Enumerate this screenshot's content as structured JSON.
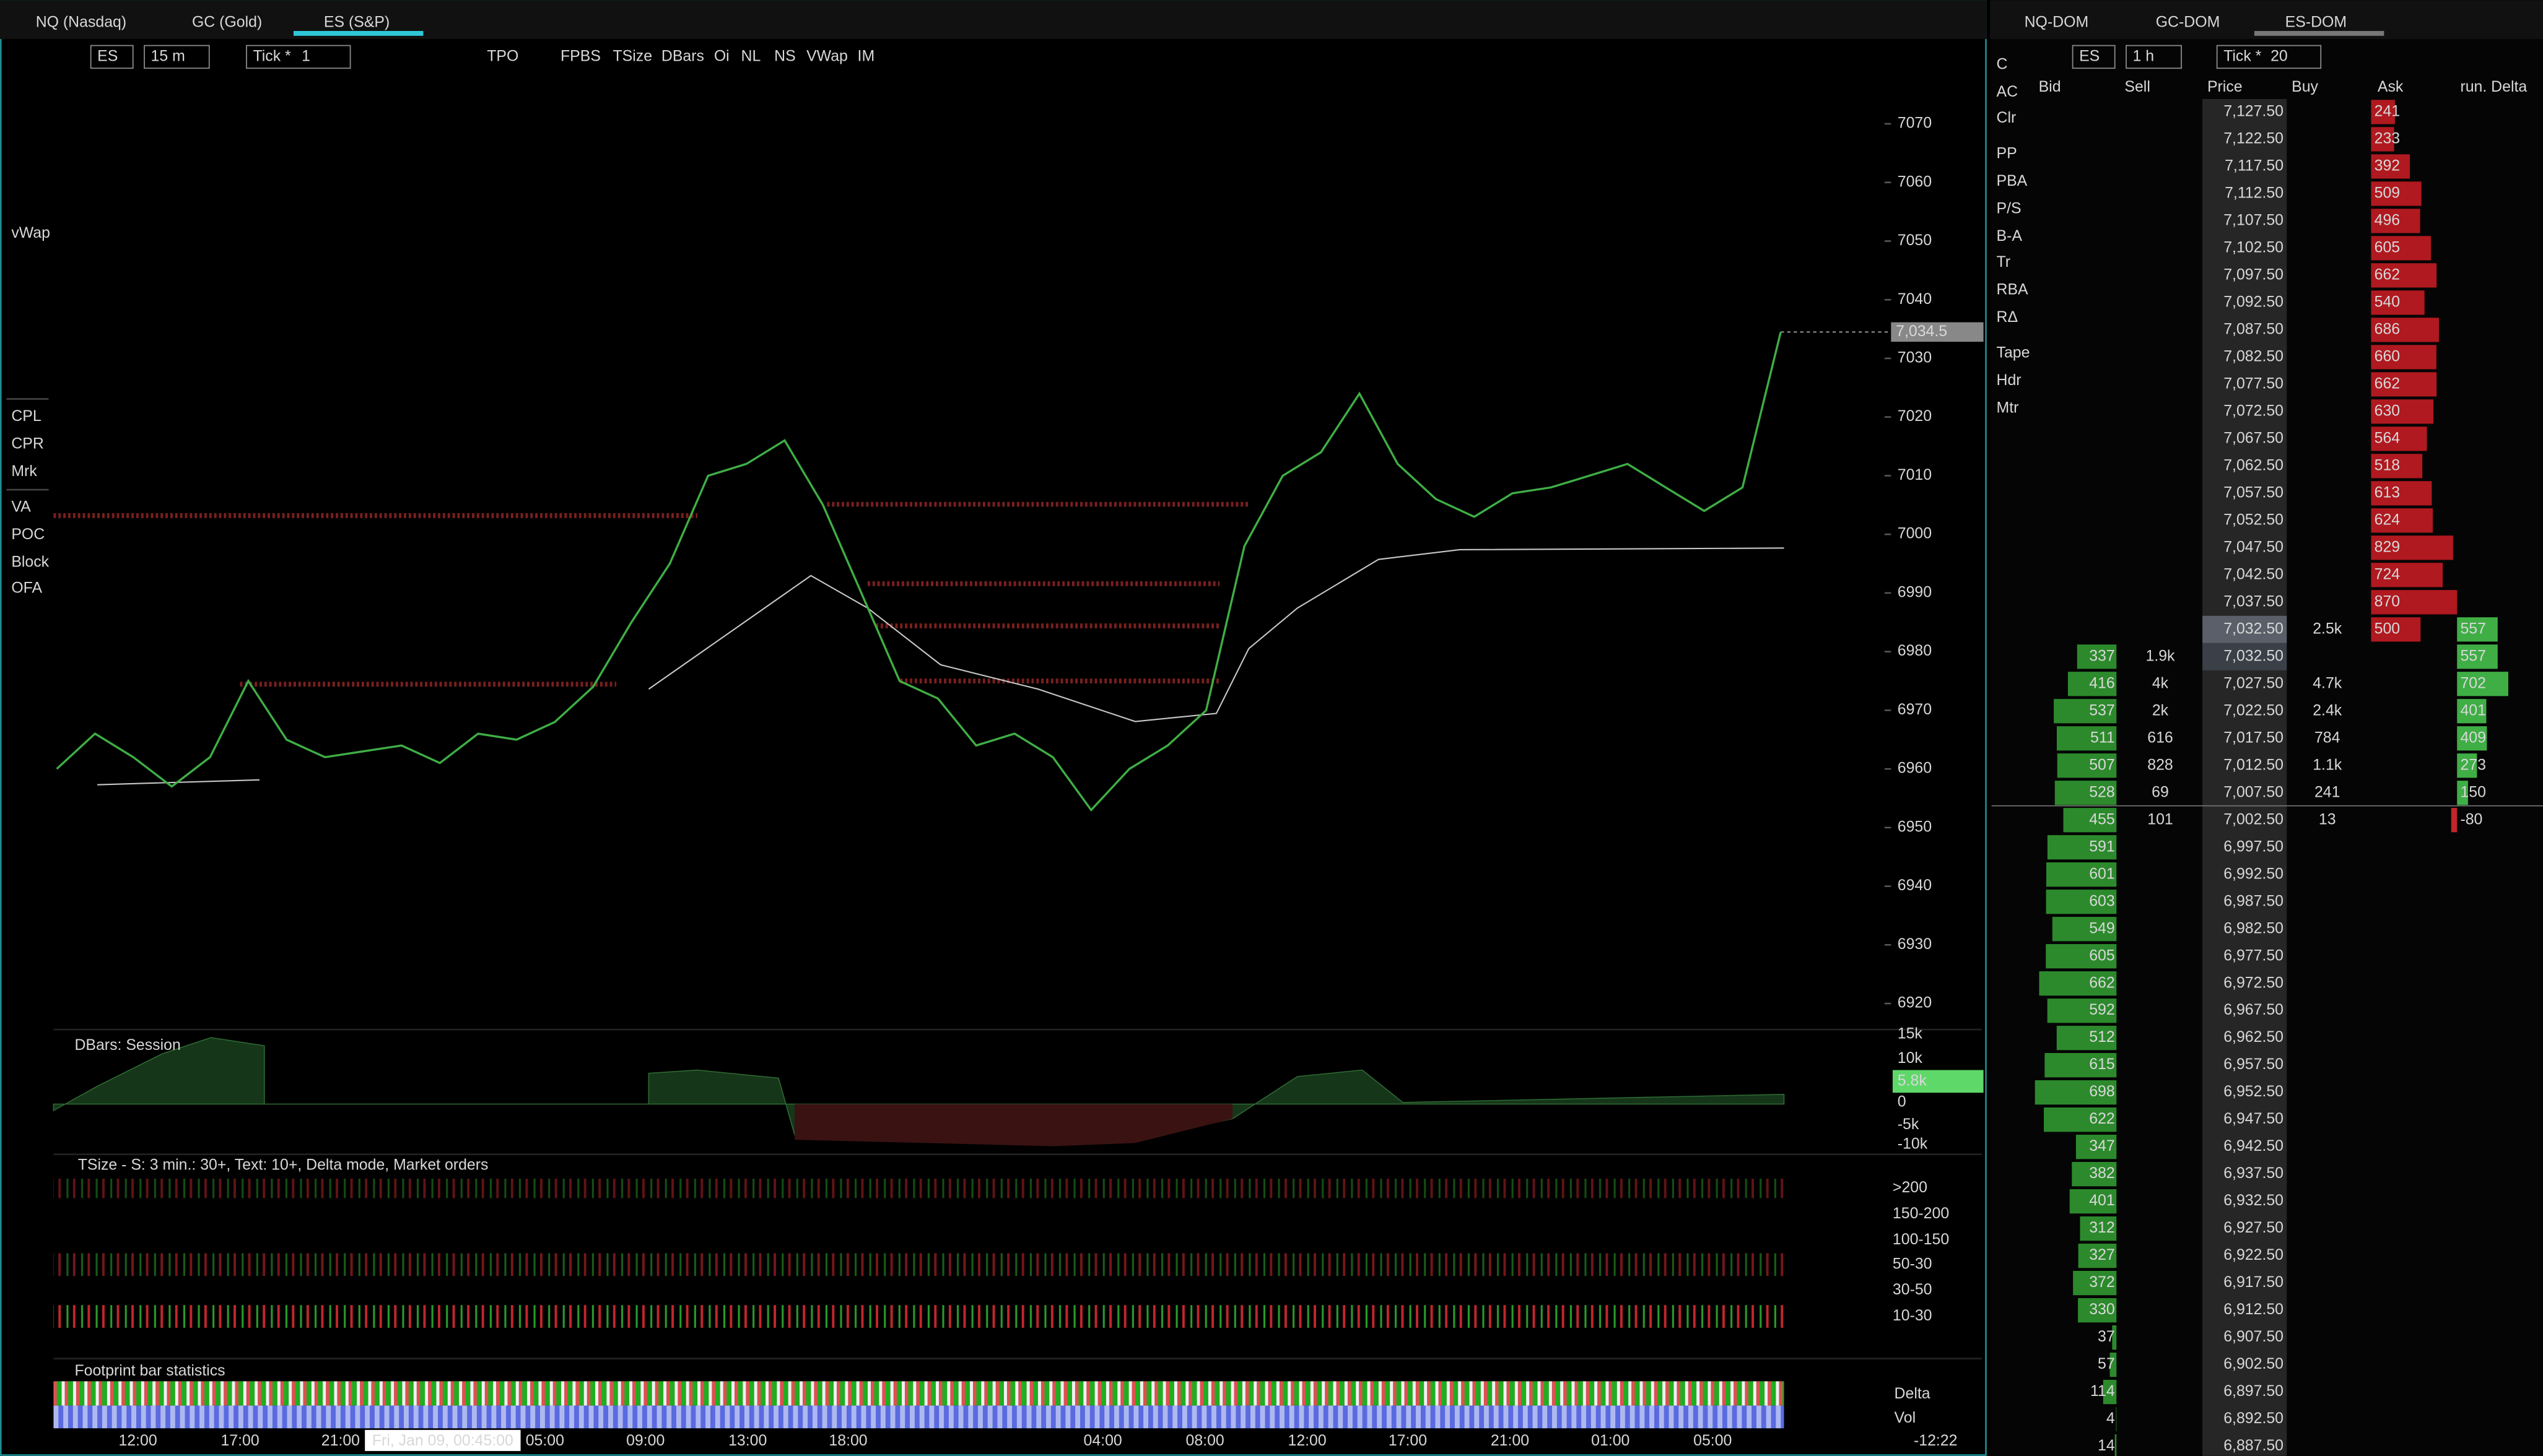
{
  "tabs_left": [
    "NQ (Nasdaq)",
    "GC (Gold)",
    "ES (S&P)"
  ],
  "toolbar_left": {
    "symbol": "ES",
    "interval": "15 m",
    "tick_label": "Tick *",
    "tick_value": "1",
    "buttons": [
      "TPO",
      "FPBS",
      "TSize",
      "DBars",
      "Oi",
      "NL",
      "NS",
      "VWap",
      "IM"
    ]
  },
  "sidebar_left": [
    "vWap",
    "CPL",
    "CPR",
    "Mrk",
    "VA",
    "POC",
    "Block",
    "OFA"
  ],
  "price_chart": {
    "ylim": [
      6917.5,
      7074.5
    ],
    "yticks": [
      7070,
      7060,
      7050,
      7040,
      7030,
      7020,
      7010,
      7000,
      6990,
      6980,
      6970,
      6960,
      6950,
      6940,
      6930,
      6920
    ],
    "values": [
      6960,
      6966,
      6962,
      6957,
      6962,
      6975,
      6965,
      6962,
      6963,
      6964,
      6961,
      6966,
      6965,
      6968,
      6974,
      6985,
      6995,
      7010,
      7012,
      7016,
      7005,
      6990,
      6975,
      6972,
      6964,
      6966,
      6962,
      6953,
      6960,
      6964,
      6970,
      6998,
      7010,
      7014,
      7024,
      7012,
      7006,
      7003,
      7007,
      7008,
      7010,
      7012,
      7008,
      7004,
      7008,
      7034.5
    ],
    "last_price": {
      "value": 7034.5,
      "label": "7,034.5"
    },
    "time_labels": [
      "12:00",
      "17:00",
      "21:00",
      "05:00",
      "09:00",
      "13:00",
      "18:00",
      "04:00",
      "08:00",
      "12:00",
      "17:00",
      "21:00",
      "01:00",
      "05:00"
    ],
    "crosshair_time": "Fri, Jan 09, 00:45:00"
  },
  "dbars": {
    "title": "DBars: Session",
    "axis": [
      "15k",
      "10k",
      "5.8k",
      "0",
      "-5k",
      "-10k"
    ]
  },
  "tsize": {
    "title": "TSize - S: 3 min.: 30+, Text: 10+, Delta mode,  Market orders",
    "levels": [
      ">200",
      "150-200",
      "100-150",
      "50-30",
      "30-50",
      "10-30"
    ]
  },
  "footprint": {
    "title": "Footprint bar statistics",
    "rows": [
      "Delta",
      "Vol"
    ],
    "timer": "-12:22"
  },
  "tabs_right": [
    "NQ-DOM",
    "GC-DOM",
    "ES-DOM"
  ],
  "toolbar_right": {
    "symbol": "ES",
    "interval": "1 h",
    "tick_label": "Tick *",
    "tick_value": "20"
  },
  "sidebar_right": [
    "C",
    "AC",
    "Clr",
    "PP",
    "PBA",
    "P/S",
    "B-A",
    "Tr",
    "RBA",
    "RΔ",
    "Tape",
    "Hdr",
    "Mtr"
  ],
  "dom": {
    "columns": [
      "Bid",
      "Sell",
      "Price",
      "Buy",
      "Ask",
      "run. Delta"
    ],
    "rows": [
      [
        "7,127.50",
        null,
        null,
        null,
        241,
        null
      ],
      [
        "7,122.50",
        null,
        null,
        null,
        233,
        null
      ],
      [
        "7,117.50",
        null,
        null,
        null,
        392,
        null
      ],
      [
        "7,112.50",
        null,
        null,
        null,
        509,
        null
      ],
      [
        "7,107.50",
        null,
        null,
        null,
        496,
        null
      ],
      [
        "7,102.50",
        null,
        null,
        null,
        605,
        null
      ],
      [
        "7,097.50",
        null,
        null,
        null,
        662,
        null
      ],
      [
        "7,092.50",
        null,
        null,
        null,
        540,
        null
      ],
      [
        "7,087.50",
        null,
        null,
        null,
        686,
        null
      ],
      [
        "7,082.50",
        null,
        null,
        null,
        660,
        null
      ],
      [
        "7,077.50",
        null,
        null,
        null,
        662,
        null
      ],
      [
        "7,072.50",
        null,
        null,
        null,
        630,
        null
      ],
      [
        "7,067.50",
        null,
        null,
        null,
        564,
        null
      ],
      [
        "7,062.50",
        null,
        null,
        null,
        518,
        null
      ],
      [
        "7,057.50",
        null,
        null,
        null,
        613,
        null
      ],
      [
        "7,052.50",
        null,
        null,
        null,
        624,
        null
      ],
      [
        "7,047.50",
        null,
        null,
        null,
        829,
        null
      ],
      [
        "7,042.50",
        null,
        null,
        null,
        724,
        null
      ],
      [
        "7,037.50",
        null,
        null,
        null,
        870,
        null
      ],
      [
        "7,032.50",
        null,
        null,
        "2.5k",
        500,
        557
      ],
      [
        "7,032.50",
        337,
        "1.9k",
        null,
        null,
        557
      ],
      [
        "7,027.50",
        416,
        "4k",
        "4.7k",
        null,
        702
      ],
      [
        "7,022.50",
        537,
        "2k",
        "2.4k",
        null,
        401
      ],
      [
        "7,017.50",
        511,
        "616",
        "784",
        null,
        409
      ],
      [
        "7,012.50",
        507,
        "828",
        "1.1k",
        null,
        273
      ],
      [
        "7,007.50",
        528,
        "69",
        "241",
        null,
        150
      ],
      [
        "7,002.50",
        455,
        "101",
        "13",
        null,
        -80
      ],
      [
        "6,997.50",
        591,
        null,
        null,
        null,
        null
      ],
      [
        "6,992.50",
        601,
        null,
        null,
        null,
        null
      ],
      [
        "6,987.50",
        603,
        null,
        null,
        null,
        null
      ],
      [
        "6,982.50",
        549,
        null,
        null,
        null,
        null
      ],
      [
        "6,977.50",
        605,
        null,
        null,
        null,
        null
      ],
      [
        "6,972.50",
        662,
        null,
        null,
        null,
        null
      ],
      [
        "6,967.50",
        592,
        null,
        null,
        null,
        null
      ],
      [
        "6,962.50",
        512,
        null,
        null,
        null,
        null
      ],
      [
        "6,957.50",
        615,
        null,
        null,
        null,
        null
      ],
      [
        "6,952.50",
        698,
        null,
        null,
        null,
        null
      ],
      [
        "6,947.50",
        622,
        null,
        null,
        null,
        null
      ],
      [
        "6,942.50",
        347,
        null,
        null,
        null,
        null
      ],
      [
        "6,937.50",
        382,
        null,
        null,
        null,
        null
      ],
      [
        "6,932.50",
        401,
        null,
        null,
        null,
        null
      ],
      [
        "6,927.50",
        312,
        null,
        null,
        null,
        null
      ],
      [
        "6,922.50",
        327,
        null,
        null,
        null,
        null
      ],
      [
        "6,917.50",
        372,
        null,
        null,
        null,
        null
      ],
      [
        "6,912.50",
        330,
        null,
        null,
        null,
        null
      ],
      [
        "6,907.50",
        37,
        null,
        null,
        null,
        null
      ],
      [
        "6,902.50",
        57,
        null,
        null,
        null,
        null
      ],
      [
        "6,897.50",
        114,
        null,
        null,
        null,
        null
      ],
      [
        "6,892.50",
        4,
        null,
        null,
        null,
        null
      ],
      [
        "6,887.50",
        14,
        null,
        null,
        null,
        null
      ]
    ]
  }
}
